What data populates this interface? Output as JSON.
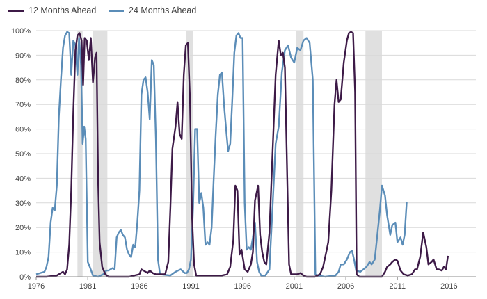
{
  "chart_data": {
    "type": "line",
    "title": "",
    "xlabel": "",
    "ylabel": "",
    "xlim": [
      1976.0,
      2018.6
    ],
    "ylim": [
      0,
      100
    ],
    "x_ticks": [
      1976,
      1981,
      1986,
      1991,
      1996,
      2001,
      2006,
      2011,
      2016
    ],
    "x_tick_labels": [
      "1976",
      "1981",
      "1986",
      "1991",
      "1996",
      "2001",
      "2006",
      "2011",
      "2016"
    ],
    "y_ticks": [
      0,
      10,
      20,
      30,
      40,
      50,
      60,
      70,
      80,
      90,
      100
    ],
    "y_tick_labels": [
      "0%",
      "10%",
      "20%",
      "30%",
      "40%",
      "50%",
      "60%",
      "70%",
      "80%",
      "90%",
      "100%"
    ],
    "grid": true,
    "legend_position": "top-left",
    "recessions": [
      [
        1980.0,
        1980.5
      ],
      [
        1981.5,
        1982.9
      ],
      [
        1990.5,
        1991.2
      ],
      [
        2001.2,
        2001.9
      ],
      [
        2007.9,
        2009.5
      ]
    ],
    "recession_color": "#e0e0e0",
    "series": [
      {
        "name": "12 Months Ahead",
        "color": "#3d1a47",
        "points": [
          [
            1976.0,
            0
          ],
          [
            1977.0,
            0
          ],
          [
            1978.0,
            0.5
          ],
          [
            1978.6,
            2
          ],
          [
            1978.8,
            1
          ],
          [
            1979.0,
            3
          ],
          [
            1979.2,
            13
          ],
          [
            1979.4,
            35
          ],
          [
            1979.6,
            67
          ],
          [
            1979.8,
            92
          ],
          [
            1980.0,
            98
          ],
          [
            1980.2,
            99
          ],
          [
            1980.4,
            96
          ],
          [
            1980.55,
            78
          ],
          [
            1980.7,
            97
          ],
          [
            1980.9,
            96
          ],
          [
            1981.1,
            88
          ],
          [
            1981.3,
            97
          ],
          [
            1981.5,
            79
          ],
          [
            1981.7,
            89
          ],
          [
            1981.85,
            91
          ],
          [
            1982.0,
            40
          ],
          [
            1982.15,
            14
          ],
          [
            1982.4,
            4
          ],
          [
            1982.7,
            1
          ],
          [
            1983.0,
            0
          ],
          [
            1984.0,
            0
          ],
          [
            1985.0,
            0
          ],
          [
            1986.0,
            1
          ],
          [
            1986.2,
            3
          ],
          [
            1986.6,
            2
          ],
          [
            1986.8,
            1.5
          ],
          [
            1987.0,
            2.5
          ],
          [
            1987.3,
            1.5
          ],
          [
            1987.6,
            1
          ],
          [
            1988.0,
            1
          ],
          [
            1988.5,
            1
          ],
          [
            1988.8,
            6
          ],
          [
            1989.0,
            28
          ],
          [
            1989.2,
            52
          ],
          [
            1989.5,
            61
          ],
          [
            1989.7,
            71
          ],
          [
            1989.9,
            58
          ],
          [
            1990.1,
            56
          ],
          [
            1990.3,
            82
          ],
          [
            1990.5,
            94
          ],
          [
            1990.7,
            95
          ],
          [
            1990.9,
            72
          ],
          [
            1991.1,
            25
          ],
          [
            1991.3,
            5
          ],
          [
            1991.5,
            0.5
          ],
          [
            1992.0,
            0.5
          ],
          [
            1993.0,
            0.5
          ],
          [
            1994.0,
            0.5
          ],
          [
            1994.5,
            1
          ],
          [
            1994.8,
            4
          ],
          [
            1995.1,
            15
          ],
          [
            1995.3,
            37
          ],
          [
            1995.5,
            35
          ],
          [
            1995.7,
            9
          ],
          [
            1995.9,
            11
          ],
          [
            1996.2,
            3
          ],
          [
            1996.5,
            2
          ],
          [
            1996.8,
            5
          ],
          [
            1997.0,
            10
          ],
          [
            1997.2,
            31
          ],
          [
            1997.5,
            37
          ],
          [
            1997.7,
            17
          ],
          [
            1997.9,
            10
          ],
          [
            1998.1,
            6
          ],
          [
            1998.3,
            5
          ],
          [
            1998.6,
            18
          ],
          [
            1998.9,
            50
          ],
          [
            1999.2,
            82
          ],
          [
            1999.5,
            96
          ],
          [
            1999.7,
            90
          ],
          [
            1999.9,
            91
          ],
          [
            2000.1,
            85
          ],
          [
            2000.3,
            45
          ],
          [
            2000.5,
            5
          ],
          [
            2000.7,
            1
          ],
          [
            2001.0,
            1
          ],
          [
            2001.3,
            1
          ],
          [
            2001.6,
            1.5
          ],
          [
            2001.9,
            0.5
          ],
          [
            2002.2,
            0
          ],
          [
            2003.0,
            0
          ],
          [
            2003.5,
            1
          ],
          [
            2003.8,
            4
          ],
          [
            2004.1,
            10
          ],
          [
            2004.3,
            14
          ],
          [
            2004.6,
            35
          ],
          [
            2004.9,
            70
          ],
          [
            2005.1,
            80
          ],
          [
            2005.3,
            71
          ],
          [
            2005.5,
            72
          ],
          [
            2005.8,
            87
          ],
          [
            2006.1,
            96
          ],
          [
            2006.3,
            99
          ],
          [
            2006.5,
            99.5
          ],
          [
            2006.7,
            99
          ],
          [
            2006.9,
            75
          ],
          [
            2007.05,
            1
          ],
          [
            2007.3,
            0
          ],
          [
            2008.0,
            0
          ],
          [
            2009.0,
            0
          ],
          [
            2009.5,
            0
          ],
          [
            2009.8,
            2
          ],
          [
            2010.0,
            4
          ],
          [
            2010.3,
            5
          ],
          [
            2010.5,
            6
          ],
          [
            2010.8,
            7
          ],
          [
            2011.0,
            6.5
          ],
          [
            2011.3,
            2.5
          ],
          [
            2011.6,
            1
          ],
          [
            2012.0,
            0.5
          ],
          [
            2012.4,
            1
          ],
          [
            2012.7,
            3
          ],
          [
            2012.9,
            3
          ],
          [
            2013.2,
            8
          ],
          [
            2013.5,
            18
          ],
          [
            2013.8,
            12
          ],
          [
            2014.0,
            5
          ],
          [
            2014.3,
            6
          ],
          [
            2014.5,
            7
          ],
          [
            2014.8,
            3
          ],
          [
            2015.0,
            3
          ],
          [
            2015.3,
            2.5
          ],
          [
            2015.5,
            4
          ],
          [
            2015.7,
            3
          ],
          [
            2015.9,
            8.5
          ]
        ]
      },
      {
        "name": "24 Months Ahead",
        "color": "#5b8db8",
        "points": [
          [
            1976.0,
            1
          ],
          [
            1976.8,
            2
          ],
          [
            1977.0,
            4
          ],
          [
            1977.2,
            8
          ],
          [
            1977.4,
            22
          ],
          [
            1977.6,
            28
          ],
          [
            1977.8,
            27
          ],
          [
            1978.0,
            37
          ],
          [
            1978.2,
            65
          ],
          [
            1978.4,
            80
          ],
          [
            1978.6,
            93
          ],
          [
            1978.8,
            98
          ],
          [
            1979.0,
            99.5
          ],
          [
            1979.2,
            99
          ],
          [
            1979.4,
            82
          ],
          [
            1979.6,
            96
          ],
          [
            1979.8,
            94
          ],
          [
            1980.0,
            82
          ],
          [
            1980.15,
            97
          ],
          [
            1980.35,
            86
          ],
          [
            1980.5,
            54
          ],
          [
            1980.65,
            61
          ],
          [
            1980.8,
            56
          ],
          [
            1981.0,
            6
          ],
          [
            1981.2,
            4
          ],
          [
            1981.5,
            0.5
          ],
          [
            1982.0,
            0
          ],
          [
            1982.5,
            1
          ],
          [
            1982.8,
            2.5
          ],
          [
            1983.0,
            2.5
          ],
          [
            1983.4,
            3.5
          ],
          [
            1983.6,
            3
          ],
          [
            1983.8,
            16
          ],
          [
            1984.0,
            18
          ],
          [
            1984.2,
            19
          ],
          [
            1984.4,
            17
          ],
          [
            1984.6,
            16
          ],
          [
            1984.8,
            11
          ],
          [
            1985.0,
            9
          ],
          [
            1985.2,
            8
          ],
          [
            1985.4,
            13
          ],
          [
            1985.6,
            12
          ],
          [
            1985.8,
            22
          ],
          [
            1986.0,
            35
          ],
          [
            1986.2,
            74
          ],
          [
            1986.4,
            80
          ],
          [
            1986.6,
            81
          ],
          [
            1986.8,
            75
          ],
          [
            1987.0,
            64
          ],
          [
            1987.2,
            88
          ],
          [
            1987.4,
            86
          ],
          [
            1987.6,
            56
          ],
          [
            1987.8,
            7
          ],
          [
            1988.0,
            1
          ],
          [
            1989.0,
            0.5
          ],
          [
            1989.5,
            2
          ],
          [
            1990.0,
            3
          ],
          [
            1990.4,
            1.5
          ],
          [
            1990.6,
            1.5
          ],
          [
            1990.8,
            3
          ],
          [
            1991.0,
            7
          ],
          [
            1991.2,
            28
          ],
          [
            1991.4,
            60
          ],
          [
            1991.6,
            60
          ],
          [
            1991.8,
            30
          ],
          [
            1992.0,
            34
          ],
          [
            1992.2,
            28
          ],
          [
            1992.4,
            13
          ],
          [
            1992.6,
            14
          ],
          [
            1992.8,
            13
          ],
          [
            1993.0,
            20
          ],
          [
            1993.2,
            40
          ],
          [
            1993.4,
            58
          ],
          [
            1993.6,
            74
          ],
          [
            1993.8,
            82
          ],
          [
            1994.0,
            83
          ],
          [
            1994.2,
            70
          ],
          [
            1994.4,
            60
          ],
          [
            1994.6,
            51
          ],
          [
            1994.8,
            54
          ],
          [
            1995.0,
            72
          ],
          [
            1995.2,
            91
          ],
          [
            1995.4,
            98
          ],
          [
            1995.6,
            99
          ],
          [
            1995.8,
            97
          ],
          [
            1996.0,
            97
          ],
          [
            1996.2,
            30
          ],
          [
            1996.4,
            11
          ],
          [
            1996.6,
            12
          ],
          [
            1996.8,
            11
          ],
          [
            1997.0,
            16
          ],
          [
            1997.2,
            22
          ],
          [
            1997.4,
            6
          ],
          [
            1997.6,
            2
          ],
          [
            1997.8,
            0.5
          ],
          [
            1998.2,
            0.5
          ],
          [
            1998.6,
            3
          ],
          [
            1998.9,
            28
          ],
          [
            1999.2,
            54
          ],
          [
            1999.5,
            61
          ],
          [
            1999.8,
            83
          ],
          [
            2000.1,
            92
          ],
          [
            2000.4,
            94
          ],
          [
            2000.7,
            89
          ],
          [
            2001.0,
            87
          ],
          [
            2001.3,
            93
          ],
          [
            2001.6,
            92
          ],
          [
            2001.9,
            96
          ],
          [
            2002.2,
            97
          ],
          [
            2002.5,
            95
          ],
          [
            2002.8,
            80
          ],
          [
            2003.05,
            1
          ],
          [
            2003.3,
            0.5
          ],
          [
            2004.0,
            0
          ],
          [
            2005.0,
            0.5
          ],
          [
            2005.3,
            2
          ],
          [
            2005.5,
            5
          ],
          [
            2005.8,
            5
          ],
          [
            2006.1,
            7
          ],
          [
            2006.4,
            10
          ],
          [
            2006.6,
            10.5
          ],
          [
            2006.8,
            7
          ],
          [
            2007.0,
            2.5
          ],
          [
            2007.4,
            2
          ],
          [
            2007.7,
            3
          ],
          [
            2008.0,
            4
          ],
          [
            2008.3,
            6
          ],
          [
            2008.5,
            5
          ],
          [
            2008.8,
            7
          ],
          [
            2009.0,
            15
          ],
          [
            2009.3,
            27
          ],
          [
            2009.5,
            37
          ],
          [
            2009.8,
            33
          ],
          [
            2010.0,
            25
          ],
          [
            2010.3,
            17
          ],
          [
            2010.5,
            21
          ],
          [
            2010.8,
            22
          ],
          [
            2011.0,
            14
          ],
          [
            2011.3,
            16
          ],
          [
            2011.5,
            13
          ],
          [
            2011.7,
            17
          ],
          [
            2011.9,
            30.5
          ]
        ]
      }
    ]
  }
}
